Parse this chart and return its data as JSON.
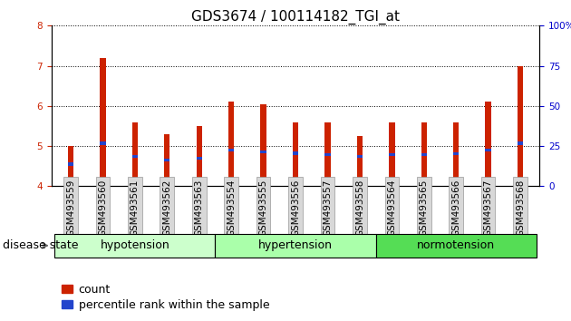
{
  "title": "GDS3674 / 100114182_TGI_at",
  "samples": [
    "GSM493559",
    "GSM493560",
    "GSM493561",
    "GSM493562",
    "GSM493563",
    "GSM493554",
    "GSM493555",
    "GSM493556",
    "GSM493557",
    "GSM493558",
    "GSM493564",
    "GSM493565",
    "GSM493566",
    "GSM493567",
    "GSM493568"
  ],
  "bar_heights": [
    5.0,
    7.2,
    5.6,
    5.3,
    5.5,
    6.1,
    6.05,
    5.6,
    5.6,
    5.25,
    5.6,
    5.6,
    5.6,
    6.1,
    7.0
  ],
  "blue_markers": [
    4.55,
    5.07,
    4.75,
    4.65,
    4.7,
    4.9,
    4.85,
    4.82,
    4.78,
    4.75,
    4.78,
    4.78,
    4.8,
    4.9,
    5.07
  ],
  "bar_color": "#cc2200",
  "blue_color": "#2244cc",
  "ylim": [
    4.0,
    8.0
  ],
  "yticks_left": [
    4,
    5,
    6,
    7,
    8
  ],
  "yticks_right": [
    0,
    25,
    50,
    75,
    100
  ],
  "groups": [
    {
      "label": "hypotension",
      "start": 0,
      "end": 5
    },
    {
      "label": "hypertension",
      "start": 5,
      "end": 10
    },
    {
      "label": "normotension",
      "start": 10,
      "end": 15
    }
  ],
  "group_colors": [
    "#ccffcc",
    "#aaffaa",
    "#55dd55"
  ],
  "group_label_prefix": "disease state",
  "legend_count_label": "count",
  "legend_percentile_label": "percentile rank within the sample",
  "bar_width": 0.18,
  "title_fontsize": 11,
  "axis_fontsize": 7.5,
  "label_fontsize": 9,
  "tick_label_color_left": "#cc2200",
  "tick_label_color_right": "#0000cc"
}
